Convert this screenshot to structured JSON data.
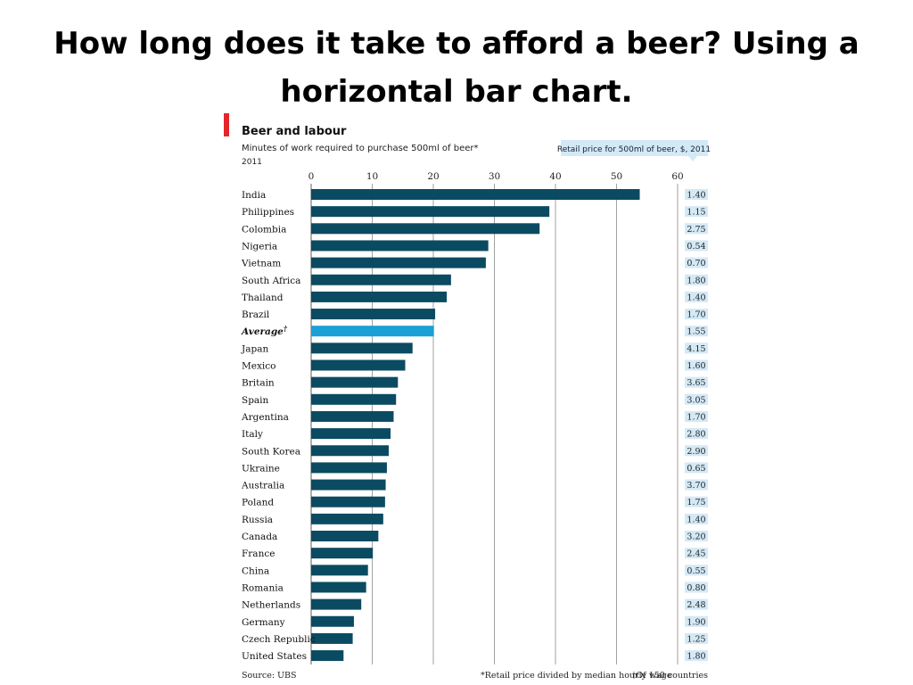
{
  "slide": {
    "title": "How long does it take to afford a beer? Using a horizontal bar chart."
  },
  "colors": {
    "bar": "#0b4b62",
    "highlight": "#1a9fd6",
    "accent": "#e3262d",
    "price_box": "#d3e9f6",
    "grid": "#7a7a7a"
  },
  "chart_data": {
    "type": "bar",
    "orientation": "horizontal",
    "title": "Beer and labour",
    "subtitle": "Minutes of work required to purchase 500ml of beer*",
    "year": "2011",
    "xlim": [
      0,
      60
    ],
    "x_ticks": [
      "0",
      "10",
      "20",
      "30",
      "40",
      "50",
      "60"
    ],
    "grid": true,
    "highlight_category": "Average",
    "price_header": "Retail price for 500ml of beer, $, 2011",
    "categories": [
      "India",
      "Philippines",
      "Colombia",
      "Nigeria",
      "Vietnam",
      "South Africa",
      "Thailand",
      "Brazil",
      "Average",
      "Japan",
      "Mexico",
      "Britain",
      "Spain",
      "Argentina",
      "Italy",
      "South Korea",
      "Ukraine",
      "Australia",
      "Poland",
      "Russia",
      "Canada",
      "France",
      "China",
      "Romania",
      "Netherlands",
      "Germany",
      "Czech Republic",
      "United States"
    ],
    "values": [
      53.8,
      39,
      37.4,
      29,
      28.6,
      22.9,
      22.2,
      20.3,
      20.1,
      16.6,
      15.4,
      14.2,
      13.9,
      13.5,
      13,
      12.7,
      12.4,
      12.2,
      12.1,
      11.8,
      11,
      10.1,
      9.3,
      9,
      8.2,
      7,
      6.8,
      5.3
    ],
    "prices": [
      "1.40",
      "1.15",
      "2.75",
      "0.54",
      "0.70",
      "1.80",
      "1.40",
      "1.70",
      "1.55",
      "4.15",
      "1.60",
      "3.65",
      "3.05",
      "1.70",
      "2.80",
      "2.90",
      "0.65",
      "3.70",
      "1.75",
      "1.40",
      "3.20",
      "2.45",
      "0.55",
      "0.80",
      "2.48",
      "1.90",
      "1.25",
      "1.80"
    ],
    "footnote_source": "Source: UBS",
    "footnote_1": "*Retail price divided by median hourly wage",
    "footnote_2": "†Of 150 countries"
  }
}
